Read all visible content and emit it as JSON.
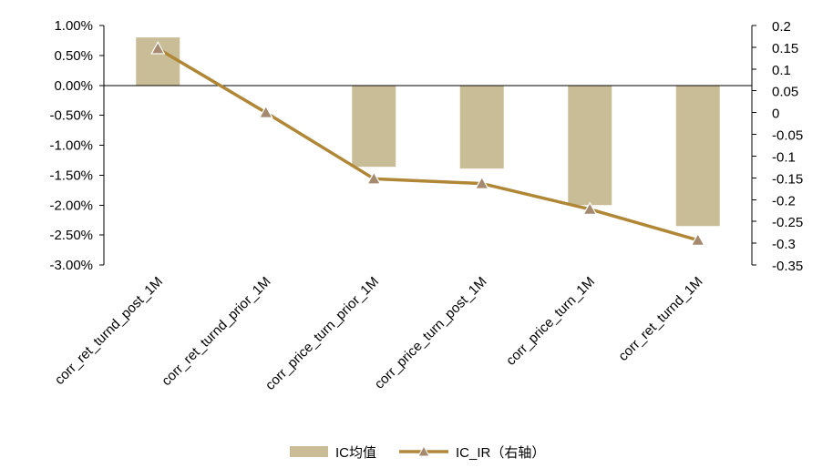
{
  "chart_data": {
    "type": "bar",
    "categories": [
      "corr_ret_turnd_post_1M",
      "corr_ret_turnd_prior_1M",
      "corr_price_turn_prior_1M",
      "corr_price_turn_post_1M",
      "corr_price_turn_1M",
      "corr_ret_turnd_1M"
    ],
    "series": [
      {
        "name": "IC均值",
        "type": "bar",
        "axis": "left",
        "values": [
          0.008,
          0.0,
          -0.0136,
          -0.0139,
          -0.02,
          -0.0235
        ]
      },
      {
        "name": "IC_IR（右轴）",
        "type": "line",
        "axis": "right",
        "values": [
          0.147,
          0.0,
          -0.152,
          -0.163,
          -0.222,
          -0.293
        ]
      }
    ],
    "y_left": {
      "ylim": [
        -0.03,
        0.01
      ],
      "ticks": [
        0.01,
        0.005,
        0,
        -0.005,
        -0.01,
        -0.015,
        -0.02,
        -0.025,
        -0.03
      ],
      "tick_labels": [
        "1.00%",
        "0.50%",
        "0.00%",
        "-0.50%",
        "-1.00%",
        "-1.50%",
        "-2.00%",
        "-2.50%",
        "-3.00%"
      ]
    },
    "y_right": {
      "ylim": [
        -0.35,
        0.2
      ],
      "ticks": [
        0.2,
        0.15,
        0.1,
        0.05,
        0,
        -0.05,
        -0.1,
        -0.15,
        -0.2,
        -0.25,
        -0.3,
        -0.35
      ],
      "tick_labels": [
        "0.2",
        "0.15",
        "0.1",
        "0.05",
        "0",
        "-0.05",
        "-0.1",
        "-0.15",
        "-0.2",
        "-0.25",
        "-0.3",
        "-0.35"
      ]
    },
    "grid": false,
    "legend_position": "bottom-center",
    "colors": {
      "bar": "#c8bd96",
      "line": "#b08637",
      "marker_fill": "#a58a70",
      "marker_edge": "#ffffff"
    }
  }
}
